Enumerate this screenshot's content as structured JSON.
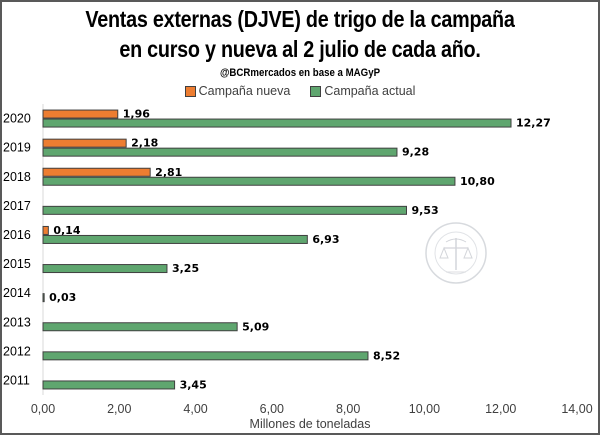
{
  "chart_data": {
    "type": "bar",
    "orientation": "horizontal",
    "title_line1": "Ventas externas (DJVE) de trigo de la campaña",
    "title_line2": "en curso y nueva al 2 julio de cada año.",
    "subtitle": "@BCRmercados en base a MAGyP",
    "xlabel": "Millones de toneladas",
    "ylabel": "",
    "xlim": [
      0,
      14
    ],
    "x_ticks": [
      0,
      2,
      4,
      6,
      8,
      10,
      12,
      14
    ],
    "x_tick_labels": [
      "0,00",
      "2,00",
      "4,00",
      "6,00",
      "8,00",
      "10,00",
      "12,00",
      "14,00"
    ],
    "grid": false,
    "legend_position": "top",
    "categories": [
      "2020",
      "2019",
      "2018",
      "2017",
      "2016",
      "2015",
      "2014",
      "2013",
      "2012",
      "2011"
    ],
    "series": [
      {
        "name": "Campaña nueva",
        "color": "#ED7D31",
        "values": [
          1.96,
          2.18,
          2.81,
          null,
          0.14,
          null,
          null,
          null,
          null,
          null
        ],
        "labels": [
          "1,96",
          "2,18",
          "2,81",
          null,
          "0,14",
          null,
          null,
          null,
          null,
          null
        ]
      },
      {
        "name": "Campaña actual",
        "color": "#5FA66F",
        "values": [
          12.27,
          9.28,
          10.8,
          9.53,
          6.93,
          3.25,
          0.03,
          5.09,
          8.52,
          3.45
        ],
        "labels": [
          "12,27",
          "9,28",
          "10,80",
          "9,53",
          "6,93",
          "3,25",
          "0,03",
          "5,09",
          "8,52",
          "3,45"
        ]
      }
    ]
  },
  "watermark": {
    "name": "Bolsa de Comercio de Rosario seal",
    "text": "BOLSA DE COMERCIO DE ROSARIO"
  }
}
